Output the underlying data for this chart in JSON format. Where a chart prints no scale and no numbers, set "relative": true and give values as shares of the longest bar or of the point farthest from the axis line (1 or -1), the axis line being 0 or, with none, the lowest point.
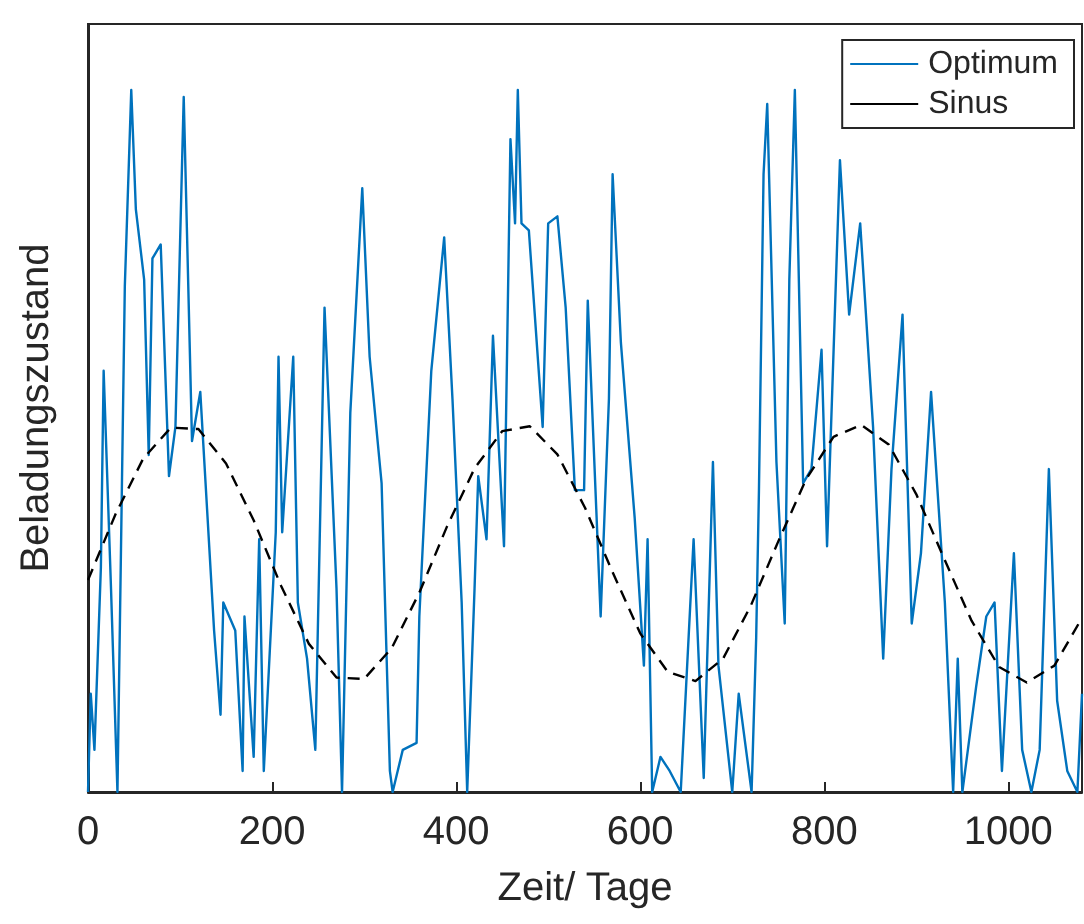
{
  "chart_data": {
    "type": "line",
    "relative": true,
    "xlabel": "Zeit/ Tage",
    "ylabel": "Beladungszustand",
    "xlim": [
      0,
      1080
    ],
    "xticks": [
      0,
      200,
      400,
      600,
      800,
      1000
    ],
    "grid": false,
    "legend": "top right",
    "marker": "none",
    "series": [
      {
        "name": "Optimum",
        "color": "#0072bd",
        "line_style": "solid",
        "x": [
          0,
          3,
          7,
          14,
          17,
          25,
          32,
          40,
          47,
          52,
          61,
          66,
          70,
          79,
          88,
          95,
          104,
          113,
          122,
          137,
          144,
          147,
          160,
          168,
          170,
          180,
          186,
          191,
          204,
          207,
          211,
          223,
          228,
          238,
          247,
          257,
          270,
          276,
          285,
          298,
          306,
          319,
          328,
          331,
          342,
          357,
          360,
          373,
          387,
          396,
          406,
          412,
          420,
          424,
          433,
          440,
          452,
          459,
          464,
          467,
          471,
          479,
          494,
          500,
          510,
          519,
          529,
          539,
          543,
          557,
          566,
          570,
          579,
          594,
          604,
          608,
          613,
          622,
          632,
          644,
          658,
          669,
          679,
          685,
          700,
          707,
          721,
          726,
          729,
          734,
          738,
          748,
          757,
          762,
          768,
          777,
          786,
          797,
          803,
          817,
          827,
          839,
          853,
          864,
          873,
          885,
          895,
          905,
          916,
          931,
          940,
          945,
          950,
          965,
          976,
          985,
          993,
          1006,
          1015,
          1025,
          1034,
          1044,
          1053,
          1064,
          1075,
          1080
        ],
        "values": [
          0,
          0.14,
          0.06,
          0.32,
          0.6,
          0.29,
          0,
          0.72,
          1,
          0.83,
          0.73,
          0.48,
          0.76,
          0.78,
          0.45,
          0.52,
          0.99,
          0.5,
          0.57,
          0.23,
          0.11,
          0.27,
          0.23,
          0.03,
          0.25,
          0.05,
          0.36,
          0.03,
          0.37,
          0.62,
          0.37,
          0.62,
          0.27,
          0.19,
          0.06,
          0.69,
          0.29,
          0,
          0.54,
          0.86,
          0.62,
          0.44,
          0.03,
          0,
          0.06,
          0.07,
          0.25,
          0.6,
          0.79,
          0.56,
          0.27,
          0,
          0.29,
          0.45,
          0.36,
          0.65,
          0.35,
          0.93,
          0.81,
          1,
          0.81,
          0.8,
          0.52,
          0.81,
          0.82,
          0.69,
          0.43,
          0.43,
          0.7,
          0.25,
          0.56,
          0.88,
          0.64,
          0.39,
          0.18,
          0.36,
          0,
          0.05,
          0.03,
          0,
          0.36,
          0.02,
          0.47,
          0.18,
          0,
          0.14,
          0,
          0.22,
          0.43,
          0.88,
          0.98,
          0.47,
          0.24,
          0.73,
          1,
          0.44,
          0.46,
          0.63,
          0.35,
          0.9,
          0.68,
          0.81,
          0.52,
          0.19,
          0.46,
          0.68,
          0.24,
          0.34,
          0.57,
          0.27,
          0,
          0.19,
          0,
          0.15,
          0.25,
          0.27,
          0.03,
          0.34,
          0.06,
          0,
          0.06,
          0.46,
          0.13,
          0.03,
          0,
          0.14
        ]
      },
      {
        "name": "Sinus",
        "color": "#000000",
        "line_style": "dashed",
        "x": [
          0,
          30,
          60,
          90,
          120,
          150,
          180,
          210,
          240,
          270,
          300,
          330,
          360,
          390,
          420,
          450,
          480,
          510,
          540,
          570,
          600,
          630,
          660,
          690,
          720,
          750,
          780,
          810,
          840,
          870,
          900,
          930,
          960,
          990,
          1020,
          1050,
          1080
        ],
        "values": [
          0.302,
          0.396,
          0.475,
          0.519,
          0.517,
          0.468,
          0.387,
          0.293,
          0.211,
          0.163,
          0.161,
          0.205,
          0.284,
          0.378,
          0.461,
          0.514,
          0.521,
          0.481,
          0.405,
          0.313,
          0.226,
          0.171,
          0.158,
          0.19,
          0.265,
          0.357,
          0.445,
          0.506,
          0.523,
          0.495,
          0.424,
          0.333,
          0.244,
          0.178,
          0.156,
          0.18,
          0.248
        ]
      }
    ]
  }
}
